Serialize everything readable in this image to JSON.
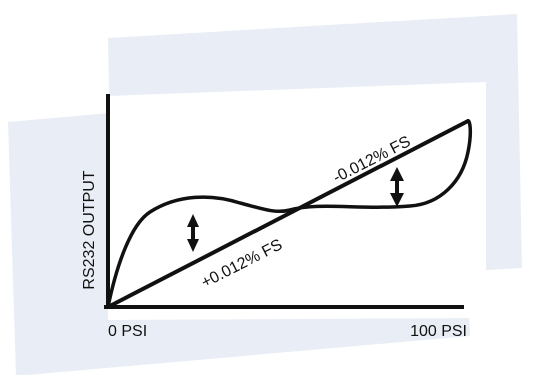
{
  "diagram": {
    "y_axis_label": "RS232 OUTPUT",
    "x_min_label": "0 PSI",
    "x_max_label": "100 PSI",
    "upper_error_label": "-0.012% FS",
    "lower_error_label": "+0.012% FS"
  },
  "colors": {
    "background_band": "#e9eef6",
    "ink": "#111111"
  },
  "icons": {
    "left": "up-down-arrow-icon",
    "right": "up-down-arrow-icon"
  }
}
